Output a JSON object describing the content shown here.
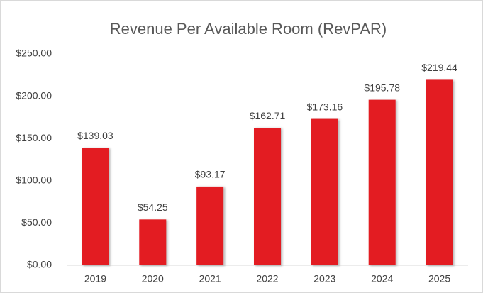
{
  "chart_data": {
    "type": "bar",
    "title": "Revenue Per Available Room (RevPAR)",
    "categories": [
      "2019",
      "2020",
      "2021",
      "2022",
      "2023",
      "2024",
      "2025"
    ],
    "values": [
      139.03,
      54.25,
      93.17,
      162.71,
      173.16,
      195.78,
      219.44
    ],
    "value_labels": [
      "$139.03",
      "$54.25",
      "$93.17",
      "$162.71",
      "$173.16",
      "$195.78",
      "$219.44"
    ],
    "color": "#e31b23",
    "ylim": [
      0,
      250
    ],
    "yticks": [
      {
        "value": 0,
        "label": "$0.00"
      },
      {
        "value": 50,
        "label": "$50.00"
      },
      {
        "value": 100,
        "label": "$100.00"
      },
      {
        "value": 150,
        "label": "$150.00"
      },
      {
        "value": 200,
        "label": "$200.00"
      },
      {
        "value": 250,
        "label": "$250.00"
      }
    ],
    "grid": false
  }
}
